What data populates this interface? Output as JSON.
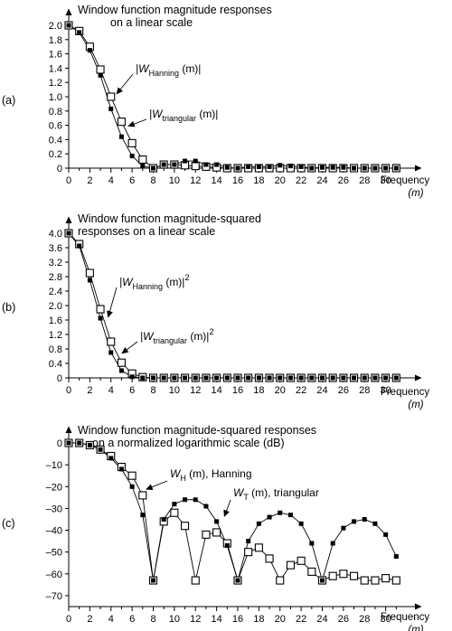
{
  "chart_data": [
    {
      "type": "line",
      "panel_label": "(a)",
      "title_lines": [
        "Window function magnitude responses",
        "on a linear scale"
      ],
      "xlabel_lines": [
        "Frequency",
        "(m)"
      ],
      "xticks": [
        0,
        2,
        4,
        6,
        8,
        10,
        12,
        14,
        16,
        18,
        20,
        22,
        24,
        26,
        28,
        30
      ],
      "yticks": [
        0,
        0.2,
        0.4,
        0.6,
        0.8,
        1.0,
        1.2,
        1.4,
        1.6,
        1.8,
        2.0
      ],
      "ytick_labels": [
        "0",
        "0.2",
        "0.4",
        "0.6",
        "0.8",
        "1.0",
        "1.2",
        "1.4",
        "1.6",
        "1.8",
        "2.0"
      ],
      "xlim": [
        0,
        32
      ],
      "ylim": [
        0,
        2.0
      ],
      "series": [
        {
          "name": "Hanning",
          "marker": "open-square",
          "x": [
            0,
            1,
            2,
            3,
            4,
            5,
            6,
            7,
            8,
            9,
            10,
            11,
            12,
            13,
            14,
            15,
            16,
            17,
            18,
            19,
            20,
            21,
            22,
            23,
            24,
            25,
            26,
            27,
            28,
            29,
            30,
            31
          ],
          "y": [
            2.0,
            1.92,
            1.7,
            1.38,
            1.0,
            0.65,
            0.35,
            0.12,
            0.0,
            0.05,
            0.05,
            0.04,
            0.03,
            0.02,
            0.01,
            0,
            0,
            0,
            0,
            0,
            0,
            0,
            0,
            0,
            0,
            0,
            0,
            0,
            0,
            0,
            0,
            0
          ]
        },
        {
          "name": "triangular",
          "marker": "filled-square",
          "x": [
            0,
            1,
            2,
            3,
            4,
            5,
            6,
            7,
            8,
            9,
            10,
            11,
            12,
            13,
            14,
            15,
            16,
            17,
            18,
            19,
            20,
            21,
            22,
            23,
            24,
            25,
            26,
            27,
            28,
            29,
            30,
            31
          ],
          "y": [
            2.0,
            1.9,
            1.65,
            1.3,
            0.83,
            0.44,
            0.17,
            0.03,
            0.0,
            0.05,
            0.05,
            0.1,
            0.1,
            0.05,
            0.05,
            0.01,
            0.0,
            0.02,
            0.02,
            0.02,
            0.04,
            0.03,
            0.02,
            0.0,
            0.01,
            0.01,
            0.01,
            0.0,
            0.0,
            0.0,
            0.0,
            0.0
          ]
        }
      ],
      "annotations": [
        {
          "series": 0,
          "text_main": "|W",
          "text_sub": "Hanning",
          "text_rest": "(m)|",
          "text_sup": "",
          "point_x": 4.1,
          "point_y": 1.0
        },
        {
          "series": 1,
          "text_main": "|W",
          "text_sub": "triangular",
          "text_rest": "(m)|",
          "text_sup": "",
          "point_x": 5.2,
          "point_y": 0.55
        }
      ]
    },
    {
      "type": "line",
      "panel_label": "(b)",
      "title_lines": [
        "Window function magnitude-squared",
        "responses on a linear scale"
      ],
      "xlabel_lines": [
        "Frequency",
        "(m)"
      ],
      "xticks": [
        0,
        2,
        4,
        6,
        8,
        10,
        12,
        14,
        16,
        18,
        20,
        22,
        24,
        26,
        28,
        30
      ],
      "yticks": [
        0,
        0.4,
        0.8,
        1.2,
        1.6,
        2.0,
        2.4,
        2.8,
        3.2,
        3.6,
        4.0
      ],
      "ytick_labels": [
        "0",
        "0.4",
        "0.8",
        "1.2",
        "1.6",
        "2.0",
        "2.4",
        "2.8",
        "3.2",
        "3.6",
        "4.0"
      ],
      "xlim": [
        0,
        32
      ],
      "ylim": [
        0,
        4.0
      ],
      "series": [
        {
          "name": "Hanning",
          "marker": "open-square",
          "x": [
            0,
            1,
            2,
            3,
            4,
            5,
            6,
            7,
            8,
            9,
            10,
            11,
            12,
            13,
            14,
            15,
            16,
            17,
            18,
            19,
            20,
            21,
            22,
            23,
            24,
            25,
            26,
            27,
            28,
            29,
            30,
            31
          ],
          "y": [
            4.0,
            3.7,
            2.9,
            1.9,
            1.0,
            0.42,
            0.12,
            0.02,
            0,
            0,
            0,
            0,
            0,
            0,
            0,
            0,
            0,
            0,
            0,
            0,
            0,
            0,
            0,
            0,
            0,
            0,
            0,
            0,
            0,
            0,
            0,
            0
          ]
        },
        {
          "name": "triangular",
          "marker": "filled-square",
          "x": [
            0,
            1,
            2,
            3,
            4,
            5,
            6,
            7,
            8,
            9,
            10,
            11,
            12,
            13,
            14,
            15,
            16,
            17,
            18,
            19,
            20,
            21,
            22,
            23,
            24,
            25,
            26,
            27,
            28,
            29,
            30,
            31
          ],
          "y": [
            4.0,
            3.65,
            2.7,
            1.65,
            0.7,
            0.2,
            0.03,
            0,
            0,
            0,
            0,
            0,
            0,
            0,
            0,
            0,
            0,
            0,
            0,
            0,
            0,
            0,
            0,
            0,
            0,
            0,
            0,
            0,
            0,
            0,
            0,
            0
          ]
        }
      ],
      "annotations": [
        {
          "series": 0,
          "text_main": "|W",
          "text_sub": "Hanning",
          "text_rest": "(m)|",
          "text_sup": "2",
          "point_x": 3.3,
          "point_y": 1.6
        },
        {
          "series": 1,
          "text_main": "|W",
          "text_sub": "triangular",
          "text_rest": "(m)|",
          "text_sup": "2",
          "point_x": 4.6,
          "point_y": 0.6
        }
      ]
    },
    {
      "type": "line",
      "panel_label": "(c)",
      "title_lines": [
        "Window function magnitude-squared responses",
        "on a normalized logarithmic scale (dB)"
      ],
      "xlabel_lines": [
        "Frequency",
        "(m)"
      ],
      "xticks": [
        0,
        2,
        4,
        6,
        8,
        10,
        12,
        14,
        16,
        18,
        20,
        22,
        24,
        26,
        28,
        30
      ],
      "yticks": [
        0,
        -10,
        -20,
        -30,
        -40,
        -50,
        -60,
        -70
      ],
      "ytick_labels": [
        "0",
        "–10",
        "–20",
        "–30",
        "–40",
        "–50",
        "–60",
        "–70"
      ],
      "xlim": [
        0,
        32
      ],
      "ylim": [
        -75,
        0
      ],
      "series": [
        {
          "name": "Hanning",
          "marker": "open-square",
          "x": [
            0,
            1,
            2,
            3,
            4,
            5,
            6,
            7,
            8,
            9,
            10,
            11,
            12,
            13,
            14,
            15,
            16,
            17,
            18,
            19,
            20,
            21,
            22,
            23,
            24,
            25,
            26,
            27,
            28,
            29,
            30,
            31
          ],
          "y": [
            0,
            0,
            -1,
            -3,
            -6,
            -11,
            -15,
            -24,
            -63,
            -36,
            -32,
            -38,
            -63,
            -42,
            -41,
            -46,
            -63,
            -50,
            -48,
            -53,
            -63,
            -56,
            -54,
            -59,
            -63,
            -61,
            -60,
            -61,
            -63,
            -63,
            -62,
            -63
          ]
        },
        {
          "name": "triangular",
          "marker": "filled-square",
          "x": [
            0,
            1,
            2,
            3,
            4,
            5,
            6,
            7,
            8,
            9,
            10,
            11,
            12,
            13,
            14,
            15,
            16,
            17,
            18,
            19,
            20,
            21,
            22,
            23,
            24,
            25,
            26,
            27,
            28,
            29,
            30,
            31
          ],
          "y": [
            0,
            0,
            -1,
            -3,
            -7,
            -12,
            -20,
            -33,
            -63,
            -35,
            -28,
            -26,
            -26,
            -29,
            -36,
            -47,
            -63,
            -45,
            -37,
            -34,
            -32,
            -33,
            -37,
            -46,
            -63,
            -46,
            -39,
            -36,
            -35,
            -37,
            -42,
            -52
          ]
        }
      ],
      "annotations": [
        {
          "series": 0,
          "text_main": "W",
          "text_sub": "H",
          "text_rest": "(m), Hanning",
          "text_sup": "",
          "point_x": 6.9,
          "point_y": -22.5
        },
        {
          "series": 1,
          "text_main": "W",
          "text_sub": "T",
          "text_rest": "(m), triangular",
          "text_sup": "",
          "point_x": 14.3,
          "point_y": -35
        }
      ]
    }
  ]
}
